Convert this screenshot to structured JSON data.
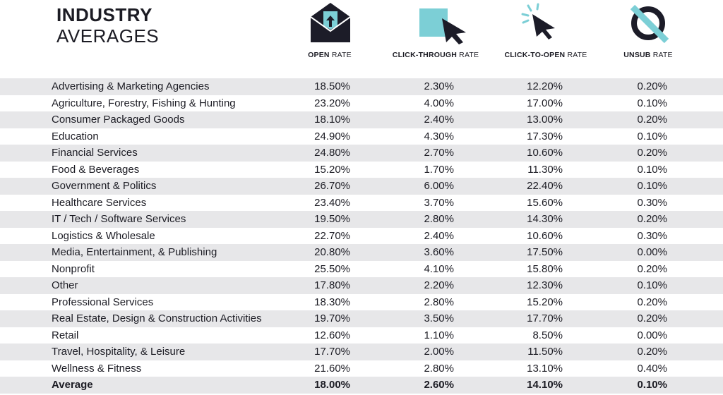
{
  "title": {
    "line1": "INDUSTRY",
    "line2": "AVERAGES"
  },
  "columns": [
    {
      "bold": "OPEN",
      "rest": " RATE",
      "icon": "envelope-icon"
    },
    {
      "bold": "CLICK-THROUGH",
      "rest": " RATE",
      "icon": "square-cursor-icon"
    },
    {
      "bold": "CLICK-TO-OPEN",
      "rest": " RATE",
      "icon": "click-cursor-icon"
    },
    {
      "bold": "UNSUB",
      "rest": " RATE",
      "icon": "no-symbol-icon"
    }
  ],
  "colors": {
    "accent": "#7ccfd6",
    "dark": "#1c1c28",
    "shade": "#e7e7e9"
  },
  "chart_data": {
    "type": "table",
    "headers": [
      "",
      "OPEN RATE",
      "CLICK-THROUGH RATE",
      "CLICK-TO-OPEN RATE",
      "UNSUB RATE"
    ],
    "rows": [
      [
        "Advertising & Marketing Agencies",
        "18.50%",
        "2.30%",
        "12.20%",
        "0.20%"
      ],
      [
        "Agriculture, Forestry, Fishing & Hunting",
        "23.20%",
        "4.00%",
        "17.00%",
        "0.10%"
      ],
      [
        "Consumer Packaged Goods",
        "18.10%",
        "2.40%",
        "13.00%",
        "0.20%"
      ],
      [
        "Education",
        "24.90%",
        "4.30%",
        "17.30%",
        "0.10%"
      ],
      [
        "Financial Services",
        "24.80%",
        "2.70%",
        "10.60%",
        "0.20%"
      ],
      [
        "Food & Beverages",
        "15.20%",
        "1.70%",
        "11.30%",
        "0.10%"
      ],
      [
        "Government & Politics",
        "26.70%",
        "6.00%",
        "22.40%",
        "0.10%"
      ],
      [
        "Healthcare Services",
        "23.40%",
        "3.70%",
        "15.60%",
        "0.30%"
      ],
      [
        "IT / Tech / Software Services",
        "19.50%",
        "2.80%",
        "14.30%",
        "0.20%"
      ],
      [
        "Logistics & Wholesale",
        "22.70%",
        "2.40%",
        "10.60%",
        "0.30%"
      ],
      [
        "Media, Entertainment, & Publishing",
        "20.80%",
        "3.60%",
        "17.50%",
        "0.00%"
      ],
      [
        "Nonprofit",
        "25.50%",
        "4.10%",
        "15.80%",
        "0.20%"
      ],
      [
        "Other",
        "17.80%",
        "2.20%",
        "12.30%",
        "0.10%"
      ],
      [
        "Professional Services",
        "18.30%",
        "2.80%",
        "15.20%",
        "0.20%"
      ],
      [
        "Real Estate, Design & Construction Activities",
        "19.70%",
        "3.50%",
        "17.70%",
        "0.20%"
      ],
      [
        "Retail",
        "12.60%",
        "1.10%",
        "8.50%",
        "0.00%"
      ],
      [
        "Travel, Hospitality, & Leisure",
        "17.70%",
        "2.00%",
        "11.50%",
        "0.20%"
      ],
      [
        "Wellness & Fitness",
        "21.60%",
        "2.80%",
        "13.10%",
        "0.40%"
      ]
    ],
    "total": [
      "Average",
      "18.00%",
      "2.60%",
      "14.10%",
      "0.10%"
    ]
  }
}
